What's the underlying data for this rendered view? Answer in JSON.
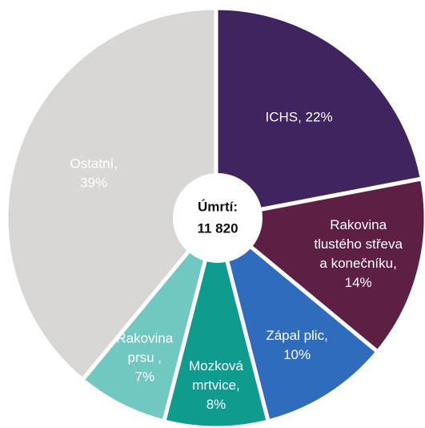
{
  "chart_data": {
    "type": "pie",
    "values": [
      22,
      14,
      10,
      8,
      7,
      39
    ],
    "value_labels": [
      [
        "ICHS, 22%"
      ],
      [
        "Rakovina",
        "tlustého střeva",
        "a konečníku,",
        "14%"
      ],
      [
        "Zápal plic,",
        "10%"
      ],
      [
        "Mozková",
        "mrtvice,",
        "8%"
      ],
      [
        "Rakovina",
        "prsu ,",
        "7%"
      ],
      [
        "Ostatní,",
        "39%"
      ]
    ],
    "colors": [
      "#3f2460",
      "#5e1f45",
      "#2f6cbd",
      "#0f9b8e",
      "#70c8c0",
      "#d9d7d6"
    ],
    "center_label": [
      "Úmrtí:",
      "11 820"
    ]
  }
}
